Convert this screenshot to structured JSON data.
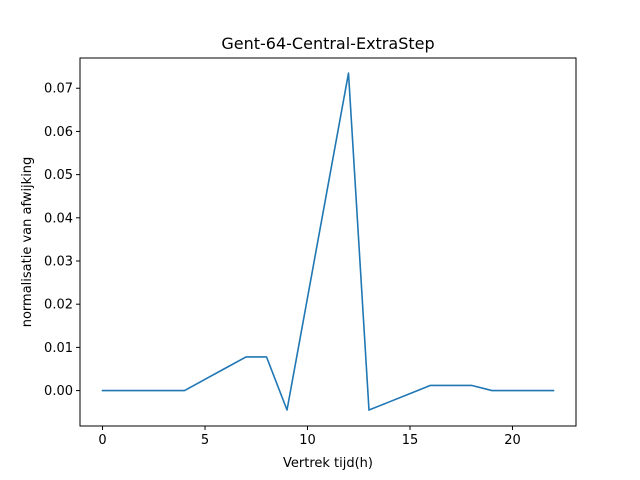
{
  "chart_data": {
    "type": "line",
    "title": "Gent-64-Central-ExtraStep",
    "xlabel": "Vertrek tijd(h)",
    "ylabel": "normalisatie van afwijking",
    "xlim": [
      -1.1,
      23.1
    ],
    "ylim": [
      -0.0082,
      0.077
    ],
    "x_ticks": [
      0,
      5,
      10,
      15,
      20
    ],
    "x_tick_labels": [
      "0",
      "5",
      "10",
      "15",
      "20"
    ],
    "y_ticks": [
      0.0,
      0.01,
      0.02,
      0.03,
      0.04,
      0.05,
      0.06,
      0.07
    ],
    "y_tick_labels": [
      "0.00",
      "0.01",
      "0.02",
      "0.03",
      "0.04",
      "0.05",
      "0.06",
      "0.07"
    ],
    "grid": false,
    "series": [
      {
        "color": "#1f77b4",
        "x": [
          0,
          1,
          2,
          3,
          4,
          5,
          6,
          7,
          8,
          9,
          10,
          11,
          12,
          13,
          14,
          15,
          16,
          17,
          18,
          19,
          20,
          21,
          22
        ],
        "y": [
          0.0,
          0.0,
          0.0,
          0.0,
          0.0,
          0.0026,
          0.0052,
          0.0078,
          0.0078,
          -0.0045,
          0.0215,
          0.0475,
          0.0735,
          -0.0045,
          -0.0026,
          -0.0007,
          0.0012,
          0.0012,
          0.0012,
          0.0,
          0.0,
          0.0,
          0.0
        ]
      }
    ]
  }
}
